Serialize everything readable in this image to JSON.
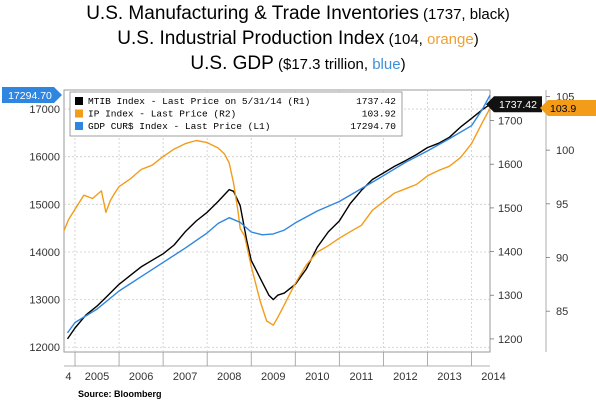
{
  "titles": {
    "line1_main": "U.S. Manufacturing & Trade Inventories",
    "line1_paren_open": " (1737, ",
    "line1_color_word": "black",
    "line1_paren_close": ")",
    "line2_main": "U.S. Industrial Production Index",
    "line2_paren_open": " (104, ",
    "line2_color_word": "orange",
    "line2_paren_close": ")",
    "line3_main": "U.S. GDP",
    "line3_paren_open": " ($17.3 trillion, ",
    "line3_color_word": "blue",
    "line3_paren_close": ")"
  },
  "source": "Source:  Bloomberg",
  "colors": {
    "mtib": "#000000",
    "ip": "#f39c1a",
    "gdp": "#2e86e0",
    "grid": "#cccccc",
    "title_orange": "#f0a030",
    "title_blue": "#3f8fd9"
  },
  "chart_data": {
    "type": "line",
    "x_tick_labels": [
      "4",
      "2005",
      "2006",
      "2007",
      "2008",
      "2009",
      "2010",
      "2011",
      "2012",
      "2013",
      "2014"
    ],
    "x_range": [
      2004.75,
      2014.42
    ],
    "left_axis": {
      "ticks": [
        12000,
        13000,
        14000,
        15000,
        16000,
        17000
      ],
      "range": [
        11900,
        17400
      ]
    },
    "right_axis_1": {
      "ticks": [
        1200,
        1300,
        1400,
        1500,
        1600,
        1700
      ],
      "range": [
        1170,
        1770
      ]
    },
    "right_axis_2": {
      "ticks": [
        85,
        90,
        95,
        100,
        105
      ],
      "range": [
        81.2,
        105.6
      ]
    },
    "legend": [
      {
        "label": "MTIB Index - Last Price on 5/31/14 (R1)",
        "value": "1737.42"
      },
      {
        "label": "IP Index - Last Price (R2)",
        "value": "103.92"
      },
      {
        "label": "GDP CUR$ Index - Last Price (L1)",
        "value": "17294.70"
      }
    ],
    "last_value_tags": {
      "gdp": "17294.70",
      "mtib": "1737.42",
      "ip": "103.9"
    },
    "series": [
      {
        "name": "MTIB Index",
        "axis": "right_axis_1",
        "x": [
          2004.83,
          2005.0,
          2005.25,
          2005.5,
          2005.75,
          2006.0,
          2006.25,
          2006.5,
          2006.75,
          2007.0,
          2007.25,
          2007.5,
          2007.75,
          2008.0,
          2008.25,
          2008.5,
          2008.6,
          2008.75,
          2008.9,
          2009.0,
          2009.2,
          2009.4,
          2009.5,
          2009.6,
          2009.75,
          2010.0,
          2010.25,
          2010.5,
          2010.75,
          2011.0,
          2011.25,
          2011.5,
          2011.75,
          2012.0,
          2012.25,
          2012.5,
          2012.75,
          2013.0,
          2013.25,
          2013.5,
          2013.75,
          2014.0,
          2014.25,
          2014.42
        ],
        "values": [
          1200,
          1225,
          1255,
          1275,
          1300,
          1325,
          1345,
          1365,
          1380,
          1395,
          1415,
          1445,
          1470,
          1490,
          1515,
          1542,
          1538,
          1505,
          1425,
          1380,
          1340,
          1300,
          1290,
          1300,
          1305,
          1325,
          1360,
          1410,
          1445,
          1470,
          1510,
          1540,
          1565,
          1580,
          1595,
          1608,
          1622,
          1638,
          1648,
          1662,
          1685,
          1705,
          1725,
          1737
        ]
      },
      {
        "name": "IP Index",
        "axis": "right_axis_2",
        "x": [
          2004.75,
          2004.85,
          2005.0,
          2005.2,
          2005.4,
          2005.6,
          2005.7,
          2005.8,
          2005.9,
          2006.0,
          2006.25,
          2006.5,
          2006.75,
          2007.0,
          2007.25,
          2007.5,
          2007.75,
          2008.0,
          2008.25,
          2008.4,
          2008.5,
          2008.6,
          2008.7,
          2008.75,
          2008.85,
          2009.0,
          2009.2,
          2009.35,
          2009.5,
          2009.6,
          2009.75,
          2010.0,
          2010.25,
          2010.5,
          2010.75,
          2011.0,
          2011.25,
          2011.5,
          2011.75,
          2012.0,
          2012.25,
          2012.5,
          2012.75,
          2013.0,
          2013.25,
          2013.5,
          2013.75,
          2014.0,
          2014.25,
          2014.42
        ],
        "values": [
          92.5,
          93.5,
          94.5,
          95.8,
          95.5,
          96.2,
          94.2,
          95.3,
          96.0,
          96.6,
          97.3,
          98.2,
          98.6,
          99.4,
          100.1,
          100.6,
          100.9,
          100.7,
          100.2,
          99.6,
          98.8,
          96.9,
          94.3,
          92.7,
          92.0,
          89.2,
          86.0,
          84.1,
          83.7,
          84.4,
          85.6,
          87.6,
          89.3,
          90.5,
          91.1,
          91.8,
          92.4,
          93.0,
          94.4,
          95.2,
          96.0,
          96.4,
          96.8,
          97.6,
          98.1,
          98.5,
          99.3,
          100.6,
          102.6,
          103.9
        ]
      },
      {
        "name": "GDP CUR$ Index",
        "axis": "left_axis",
        "x": [
          2004.83,
          2005.0,
          2005.5,
          2006.0,
          2006.5,
          2007.0,
          2007.5,
          2008.0,
          2008.25,
          2008.5,
          2008.75,
          2009.0,
          2009.25,
          2009.5,
          2009.75,
          2010.0,
          2010.5,
          2011.0,
          2011.5,
          2012.0,
          2012.5,
          2013.0,
          2013.5,
          2014.0,
          2014.25,
          2014.42
        ],
        "values": [
          12300,
          12520,
          12800,
          13180,
          13480,
          13780,
          14080,
          14400,
          14600,
          14720,
          14620,
          14420,
          14360,
          14380,
          14460,
          14610,
          14860,
          15060,
          15330,
          15600,
          15880,
          16120,
          16380,
          16650,
          17000,
          17290
        ]
      }
    ]
  }
}
